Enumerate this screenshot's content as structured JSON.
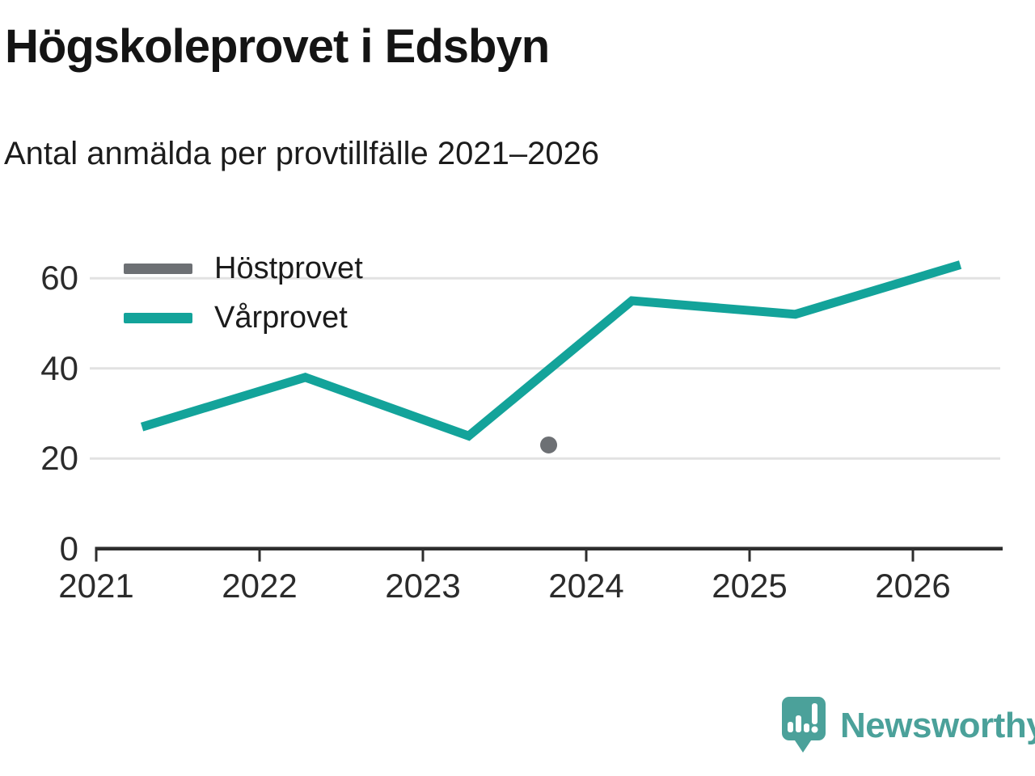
{
  "header": {
    "title": "Högskoleprovet i Edsbyn",
    "subtitle": "Antal anmälda per provtillfälle 2021–2026"
  },
  "chart_data": {
    "type": "line",
    "title": "Högskoleprovet i Edsbyn",
    "subtitle": "Antal anmälda per provtillfälle 2021–2026",
    "xlabel": "",
    "ylabel": "",
    "xlim": [
      2020.99,
      2026.55
    ],
    "ylim": [
      0,
      64
    ],
    "x_ticks": [
      2021,
      2022,
      2023,
      2024,
      2025,
      2026
    ],
    "y_ticks": [
      0,
      20,
      40,
      60
    ],
    "y_gridlines": [
      20,
      40,
      60
    ],
    "grid": "horizontal-only",
    "legend_position": "top-left-inside",
    "series": [
      {
        "name": "Höstprovet",
        "style": "point",
        "color": "#6d7074",
        "x": [
          2023.77
        ],
        "values": [
          23
        ]
      },
      {
        "name": "Vårprovet",
        "style": "line",
        "color": "#13a39a",
        "x": [
          2021.28,
          2022.28,
          2023.28,
          2024.28,
          2025.28,
          2026.29
        ],
        "values": [
          27,
          38,
          25,
          55,
          52,
          63
        ]
      }
    ]
  },
  "colors": {
    "axis": "#2d2d2d",
    "gridline": "#e2e2e2",
    "tick_text": "#2b2b2b"
  },
  "footer": {
    "brand": "Newsworthy",
    "brand_color": "#4ba19a"
  }
}
